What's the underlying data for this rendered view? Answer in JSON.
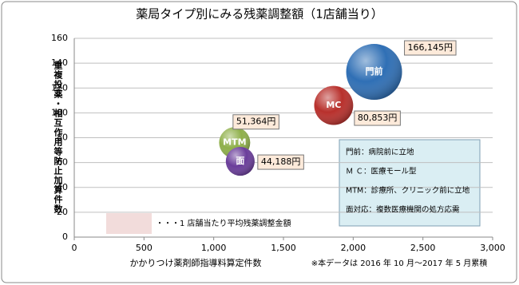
{
  "chart_data": {
    "type": "bubble",
    "title": "薬局タイプ別にみる残薬調整額（1店舗当り）",
    "x_label": "かかりつけ薬剤師指導料算定件数",
    "y_label": "重複投薬・相互作用等防止加算件数",
    "note": "※本データは 2016 年 10 月～2017 年 5 月累積",
    "size_legend": "・・・1 店舗当たり平均残薬調整金額",
    "size_legend_color": "#f2dcdb",
    "info_box": [
      "門前：病院前に立地",
      "Ｍ Ｃ：医療モール型",
      "MTM：診療所、クリニック前に立地",
      "面対応：複数医療機関の処方応需"
    ],
    "series": [
      {
        "name": "門前",
        "color": "#2f6fb5",
        "x": [
          2150
        ],
        "values": [
          133
        ],
        "sizes": [
          166145
        ],
        "value_labels": [
          "166,145円"
        ]
      },
      {
        "name": "MC",
        "color": "#b8302c",
        "x": [
          1860
        ],
        "values": [
          106
        ],
        "sizes": [
          80853
        ],
        "value_labels": [
          "80,853円"
        ]
      },
      {
        "name": "MTM",
        "color": "#8fb04a",
        "x": [
          1150
        ],
        "values": [
          76
        ],
        "sizes": [
          51364
        ],
        "value_labels": [
          "51,364円"
        ]
      },
      {
        "name": "面",
        "color": "#6a3d9a",
        "x": [
          1190
        ],
        "values": [
          61
        ],
        "sizes": [
          44188
        ],
        "value_labels": [
          "44,188円"
        ]
      }
    ],
    "xlim": [
      0,
      3000
    ],
    "xticks": [
      0,
      500,
      {
        "value": 1000,
        "label": "1,000"
      },
      {
        "value": 1500,
        "label": "1,500"
      },
      {
        "value": 2000,
        "label": "2,000"
      },
      {
        "value": 2500,
        "label": "2,500"
      },
      {
        "value": 3000,
        "label": "3,000"
      }
    ],
    "ylim": [
      0,
      160
    ],
    "yticks": [
      0,
      20,
      40,
      60,
      80,
      100,
      120,
      140,
      160
    ],
    "grid": true
  }
}
